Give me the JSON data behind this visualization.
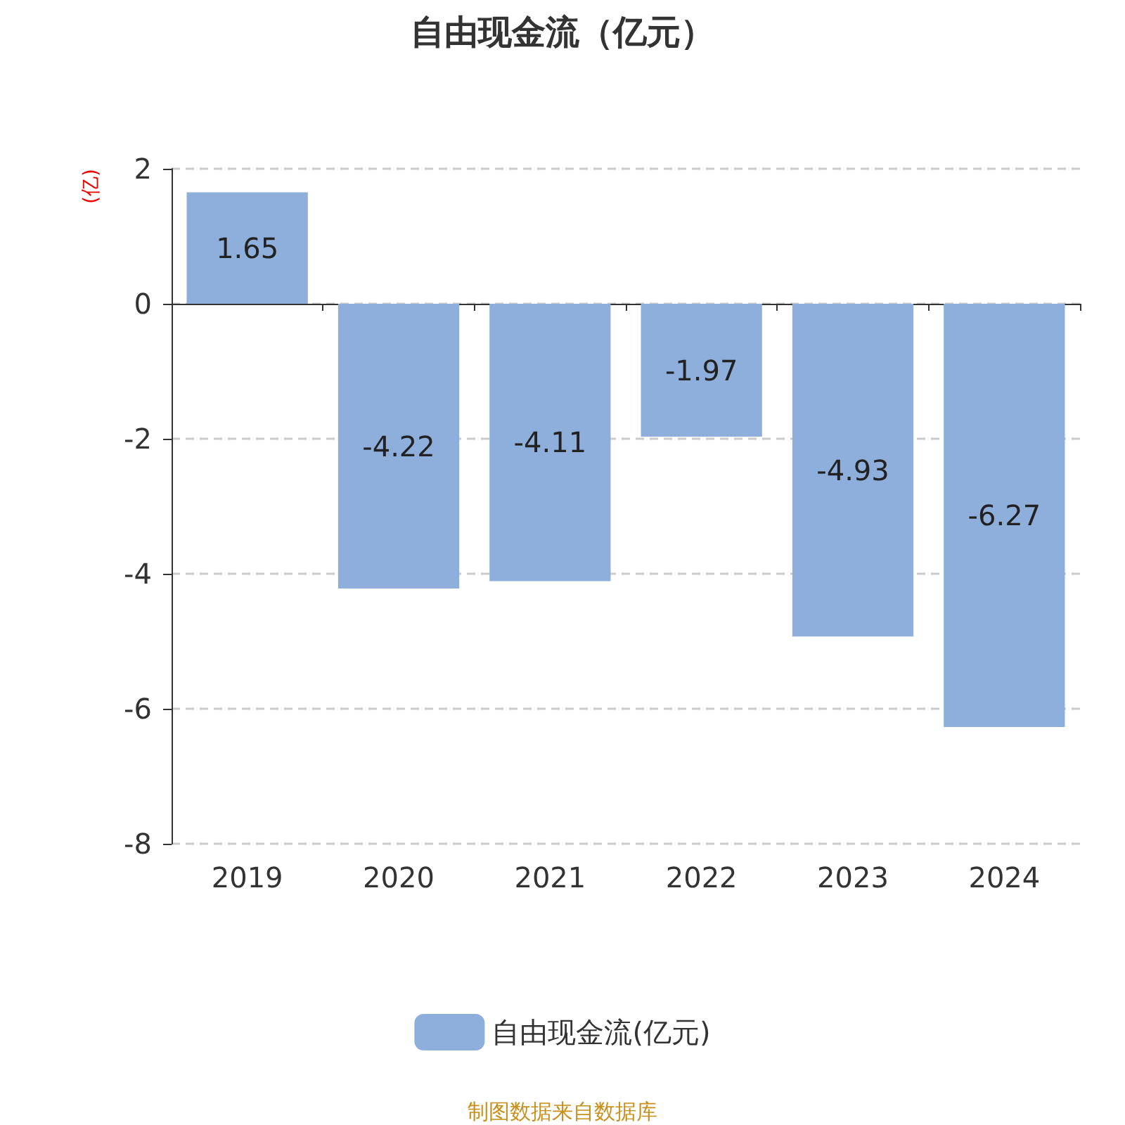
{
  "chart_data": {
    "type": "bar",
    "title": "自由现金流（亿元）",
    "ylabel": "(亿)",
    "categories": [
      "2019",
      "2020",
      "2021",
      "2022",
      "2023",
      "2024"
    ],
    "series": [
      {
        "name": "自由现金流(亿元)",
        "color": "#8eaedb",
        "values": [
          1.65,
          -4.22,
          -4.11,
          -1.97,
          -4.93,
          -6.27
        ]
      }
    ],
    "ylim": [
      -8,
      2
    ],
    "yticks": [
      -8,
      -6,
      -4,
      -2,
      0,
      2
    ],
    "grid": "y",
    "legend": "bottom",
    "data_labels": true,
    "annotations": [
      "制图数据来自数据库"
    ]
  }
}
